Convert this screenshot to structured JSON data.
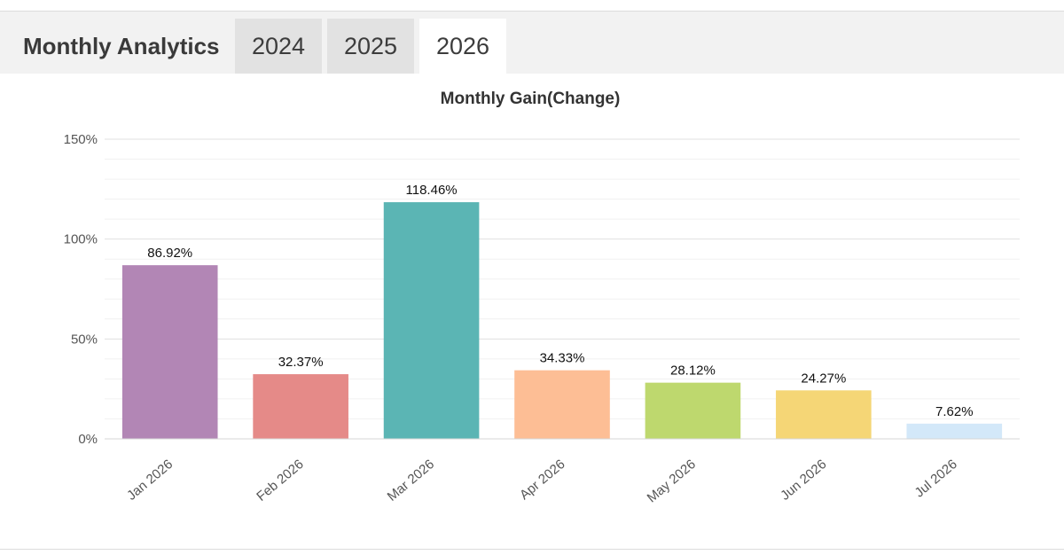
{
  "header": {
    "title": "Monthly Analytics",
    "tabs": [
      {
        "label": "2024",
        "active": false
      },
      {
        "label": "2025",
        "active": false
      },
      {
        "label": "2026",
        "active": true
      }
    ]
  },
  "chart_data": {
    "type": "bar",
    "title": "Monthly Gain(Change)",
    "xlabel": "",
    "ylabel": "",
    "categories": [
      "Jan 2026",
      "Feb 2026",
      "Mar 2026",
      "Apr 2026",
      "May 2026",
      "Jun 2026",
      "Jul 2026"
    ],
    "values": [
      86.92,
      32.37,
      118.46,
      34.33,
      28.12,
      24.27,
      7.62
    ],
    "value_labels": [
      "86.92%",
      "32.37%",
      "118.46%",
      "34.33%",
      "28.12%",
      "24.27%",
      "7.62%"
    ],
    "colors": [
      "#b286b5",
      "#e58a88",
      "#5bb5b4",
      "#fdbe95",
      "#bed86e",
      "#f5d676",
      "#d3e8f9"
    ],
    "ylim": [
      0,
      150
    ],
    "yticks": [
      0,
      50,
      100,
      150
    ],
    "ytick_labels": [
      "0%",
      "50%",
      "100%",
      "150%"
    ],
    "grid": true,
    "legend": "none"
  }
}
